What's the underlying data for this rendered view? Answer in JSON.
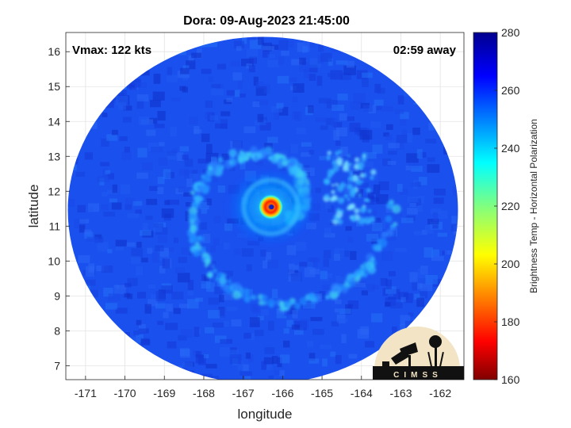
{
  "chart_data": {
    "type": "heatmap",
    "title": "Dora: 09-Aug-2023 21:45:00",
    "xlabel": "longitude",
    "ylabel": "latitude",
    "xlim": [
      -171.5,
      -161.4
    ],
    "ylim": [
      6.6,
      16.55
    ],
    "x_ticks": [
      -171,
      -170,
      -169,
      -168,
      -167,
      -166,
      -165,
      -164,
      -163,
      -162
    ],
    "y_ticks": [
      7,
      8,
      9,
      10,
      11,
      12,
      13,
      14,
      15,
      16
    ],
    "grid": true,
    "annotations": {
      "vmax": "Vmax: 122 kts",
      "away": "02:59 away"
    },
    "storm_center": {
      "lon": -166.3,
      "lat": 11.55
    },
    "swath_center": {
      "lon": -166.5,
      "lat": 11.45
    },
    "colorbar": {
      "label": "Brightness Temp - Horizontal Polarization",
      "range": [
        160,
        280
      ],
      "ticks": [
        160,
        180,
        200,
        220,
        240,
        260,
        280
      ],
      "colormap": "jet"
    }
  },
  "logo": {
    "name": "cimss-logo",
    "text": "CIMSS"
  }
}
